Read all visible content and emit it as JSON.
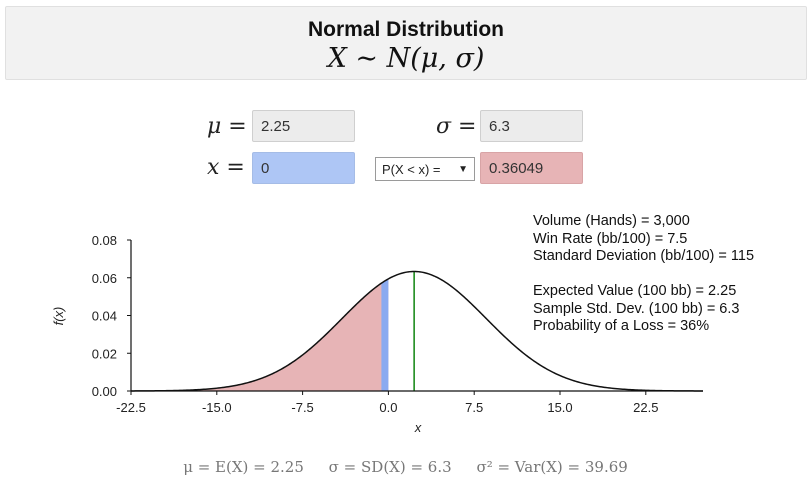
{
  "header": {
    "title": "Normal Distribution",
    "formula": "X ∼ N(μ, σ)"
  },
  "params": {
    "mu_label": "μ =",
    "mu_value": "2.25",
    "sigma_label": "σ =",
    "sigma_value": "6.3",
    "x_label": "x =",
    "x_value": "0",
    "prob_select": "P(X < x) =",
    "prob_value": "0.36049"
  },
  "info": {
    "line1": "Volume (Hands) = 3,000",
    "line2": "Win Rate (bb/100) = 7.5",
    "line3": "Standard Deviation (bb/100) = 115",
    "line4": "Expected Value (100 bb) = 2.25",
    "line5": "Sample Std. Dev. (100 bb) = 6.3",
    "line6": "Probability of a Loss = 36%"
  },
  "footer": {
    "mean": "μ = E(X) = 2.25",
    "sd": "σ = SD(X) = 6.3",
    "var": "σ² = Var(X) = 39.69"
  },
  "chart_data": {
    "type": "area",
    "title": "",
    "xlabel": "x",
    "ylabel": "f(x)",
    "xlim": [
      -22.5,
      27.5
    ],
    "ylim": [
      0,
      0.08
    ],
    "x_ticks": [
      -22.5,
      -15.0,
      -7.5,
      0.0,
      7.5,
      15.0,
      22.5
    ],
    "x_tick_labels": [
      "-22.5",
      "-15.0",
      "-7.5",
      "0.0",
      "7.5",
      "15.0",
      "22.5"
    ],
    "y_ticks": [
      0.0,
      0.02,
      0.04,
      0.06,
      0.08
    ],
    "y_tick_labels": [
      "0.00",
      "0.02",
      "0.04",
      "0.06",
      "0.08"
    ],
    "distribution": {
      "mean": 2.25,
      "sd": 6.3
    },
    "shaded_region": {
      "from": -22.5,
      "to": 0,
      "color": "#e7b4b6"
    },
    "x_marker": {
      "value": 0,
      "color": "#8aaaf0"
    },
    "mean_line": {
      "value": 2.25,
      "color": "#1e8c1e"
    },
    "grid": false
  }
}
